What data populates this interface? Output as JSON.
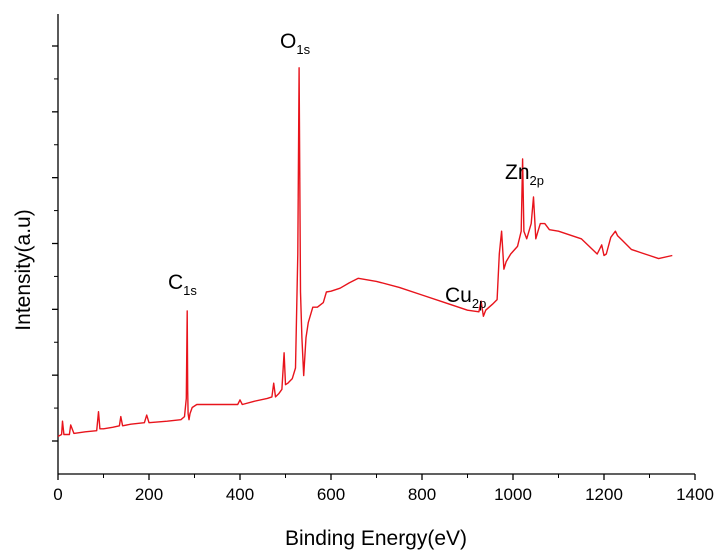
{
  "chart_data": {
    "type": "line",
    "title": "",
    "xlabel": "Binding Energy(eV)",
    "ylabel": "Intensity(a.u)",
    "xlim": [
      0,
      1400
    ],
    "ylim": [
      0,
      100
    ],
    "x_ticks": [
      "0",
      "200",
      "400",
      "600",
      "800",
      "1000",
      "1200",
      "1400"
    ],
    "y_tick_labels_shown": false,
    "y_tick_count": 7,
    "grid": false,
    "legend": "none",
    "series_color": "#e8141c",
    "series": [
      {
        "x": [
          0,
          8,
          10,
          13,
          18,
          25,
          28,
          35,
          60,
          85,
          89,
          92,
          100,
          120,
          135,
          138,
          142,
          160,
          190,
          195,
          200,
          240,
          270,
          278,
          282,
          284,
          285,
          286,
          288,
          290,
          295,
          305,
          320,
          350,
          380,
          395,
          400,
          405,
          430,
          460,
          470,
          474,
          478,
          485,
          492,
          497,
          500,
          505,
          515,
          522,
          527,
          530,
          533,
          536,
          540,
          545,
          550,
          560,
          570,
          583,
          590,
          600,
          620,
          640,
          660,
          700,
          750,
          800,
          850,
          900,
          925,
          930,
          935,
          940,
          955,
          965,
          970,
          975,
          980,
          985,
          995,
          1010,
          1018,
          1021,
          1024,
          1030,
          1040,
          1045,
          1050,
          1055,
          1060,
          1070,
          1080,
          1100,
          1150,
          1185,
          1195,
          1200,
          1205,
          1215,
          1225,
          1230,
          1240,
          1260,
          1280,
          1300,
          1320,
          1350
        ],
        "values": [
          2,
          2.5,
          6,
          2.5,
          2.5,
          2.5,
          5,
          2.8,
          3.2,
          3.5,
          8.5,
          4,
          4,
          4.4,
          4.8,
          7.2,
          4.8,
          5.2,
          5.6,
          7.6,
          5.6,
          6,
          6.4,
          7.2,
          12,
          35,
          14,
          8,
          6.4,
          8,
          9.6,
          10.4,
          10.4,
          10.4,
          10.4,
          10.4,
          11.6,
          10.4,
          11.2,
          12,
          12.4,
          16,
          12.4,
          13.2,
          14.4,
          24,
          15.6,
          16,
          17.2,
          20,
          50,
          99,
          40,
          28,
          18,
          28,
          32,
          36,
          36,
          37.2,
          40,
          40.2,
          41,
          42.4,
          43.6,
          42.8,
          41.2,
          39.2,
          37.2,
          35.2,
          34.8,
          37.6,
          33.6,
          35.2,
          36.8,
          38,
          50,
          56,
          46,
          48,
          50,
          52,
          56,
          75,
          56,
          54,
          58,
          65,
          54,
          56,
          58,
          58,
          56.4,
          56,
          54,
          50,
          52.4,
          49.6,
          50,
          54.4,
          56,
          54.8,
          53.6,
          51.2,
          50.4,
          49.6,
          48.8,
          49.6
        ]
      }
    ],
    "annotations": [
      {
        "base": "O",
        "sub": "1s"
      },
      {
        "base": "C",
        "sub": "1s"
      },
      {
        "base": "Cu",
        "sub": "2p"
      },
      {
        "base": "Zn",
        "sub": "2p"
      }
    ]
  }
}
